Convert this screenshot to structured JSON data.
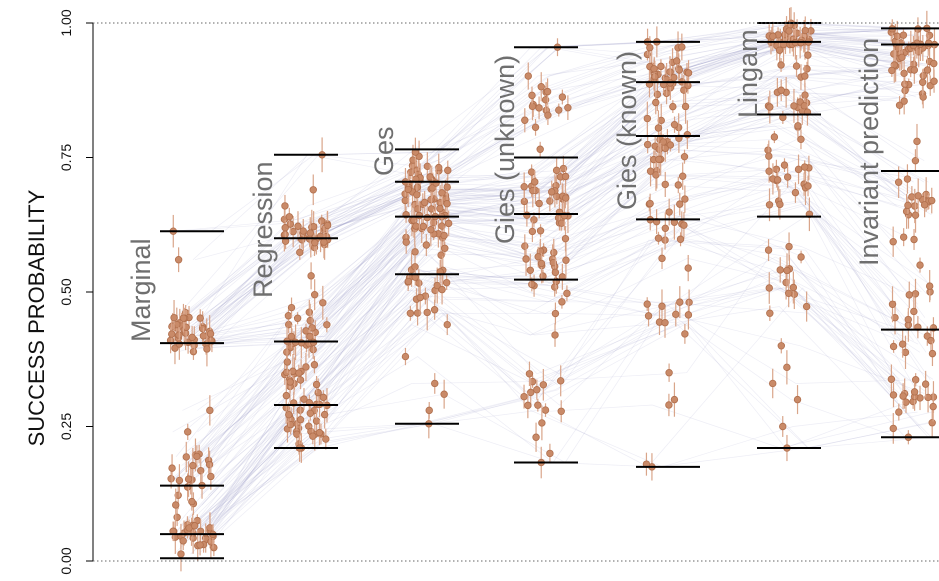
{
  "chart_data": {
    "type": "scatter",
    "ylabel": "SUCCESS PROBABILITY",
    "ylim": [
      0,
      1
    ],
    "yticks": [
      "0.00",
      "0.25",
      "0.50",
      "0.75",
      "1.00"
    ],
    "gridlines": "dotted at 0 and 1",
    "colors": {
      "point": "#c98a68",
      "point_edge": "#b06f4d",
      "errorbar": "#d9a58a",
      "connector": "#9a9ac8",
      "quantile_bar": "#000000"
    },
    "methods": [
      {
        "name": "Marginal",
        "quantiles": [
          0.005,
          0.05,
          0.14,
          0.405,
          0.613
        ],
        "clusters": [
          {
            "center": 0.05,
            "spread": 0.03,
            "n": 28
          },
          {
            "center": 0.16,
            "spread": 0.05,
            "n": 22
          },
          {
            "center": 0.425,
            "spread": 0.03,
            "n": 36
          }
        ],
        "outliers": [
          0.613,
          0.56,
          0.28,
          0.24
        ]
      },
      {
        "name": "Regression",
        "quantiles": [
          0.21,
          0.29,
          0.408,
          0.6,
          0.755
        ],
        "clusters": [
          {
            "center": 0.255,
            "spread": 0.04,
            "n": 30
          },
          {
            "center": 0.33,
            "spread": 0.04,
            "n": 20
          },
          {
            "center": 0.42,
            "spread": 0.04,
            "n": 24
          },
          {
            "center": 0.605,
            "spread": 0.03,
            "n": 34
          }
        ],
        "outliers": [
          0.755,
          0.69,
          0.66,
          0.495,
          0.53
        ]
      },
      {
        "name": "Ges",
        "quantiles": [
          0.255,
          0.533,
          0.64,
          0.705,
          0.765
        ],
        "clusters": [
          {
            "center": 0.7,
            "spread": 0.04,
            "n": 40
          },
          {
            "center": 0.61,
            "spread": 0.05,
            "n": 30
          },
          {
            "center": 0.5,
            "spread": 0.06,
            "n": 20
          }
        ],
        "outliers": [
          0.255,
          0.28,
          0.33,
          0.31,
          0.38,
          0.76
        ]
      },
      {
        "name": "Gies (unknown)",
        "quantiles": [
          0.183,
          0.523,
          0.645,
          0.75,
          0.955
        ],
        "clusters": [
          {
            "center": 0.68,
            "spread": 0.07,
            "n": 30
          },
          {
            "center": 0.56,
            "spread": 0.06,
            "n": 26
          },
          {
            "center": 0.84,
            "spread": 0.06,
            "n": 18
          },
          {
            "center": 0.32,
            "spread": 0.05,
            "n": 12
          }
        ],
        "outliers": [
          0.955,
          0.183,
          0.2,
          0.23,
          0.42,
          0.46
        ]
      },
      {
        "name": "Gies (known)",
        "quantiles": [
          0.175,
          0.635,
          0.79,
          0.89,
          0.965
        ],
        "clusters": [
          {
            "center": 0.9,
            "spread": 0.04,
            "n": 36
          },
          {
            "center": 0.78,
            "spread": 0.06,
            "n": 24
          },
          {
            "center": 0.63,
            "spread": 0.07,
            "n": 20
          },
          {
            "center": 0.45,
            "spread": 0.06,
            "n": 10
          }
        ],
        "outliers": [
          0.175,
          0.18,
          0.29,
          0.3,
          0.35,
          0.965
        ]
      },
      {
        "name": "Lingam",
        "quantiles": [
          0.21,
          0.64,
          0.83,
          0.965,
          1.0
        ],
        "clusters": [
          {
            "center": 0.975,
            "spread": 0.02,
            "n": 36
          },
          {
            "center": 0.86,
            "spread": 0.06,
            "n": 22
          },
          {
            "center": 0.7,
            "spread": 0.06,
            "n": 22
          },
          {
            "center": 0.52,
            "spread": 0.08,
            "n": 12
          }
        ],
        "outliers": [
          0.21,
          0.25,
          0.3,
          0.33,
          0.36,
          0.4
        ]
      },
      {
        "name": "Invariant prediction",
        "quantiles": [
          0.23,
          0.43,
          0.725,
          0.96,
          0.99
        ],
        "clusters": [
          {
            "center": 0.96,
            "spread": 0.03,
            "n": 32
          },
          {
            "center": 0.89,
            "spread": 0.04,
            "n": 18
          },
          {
            "center": 0.66,
            "spread": 0.06,
            "n": 18
          },
          {
            "center": 0.43,
            "spread": 0.06,
            "n": 18
          },
          {
            "center": 0.29,
            "spread": 0.04,
            "n": 16
          }
        ],
        "outliers": [
          0.23,
          0.78,
          0.71,
          0.55
        ]
      }
    ]
  }
}
